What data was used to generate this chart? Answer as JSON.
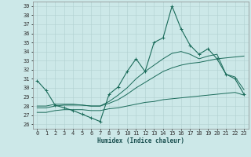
{
  "xlabel": "Humidex (Indice chaleur)",
  "bg_color": "#cce8e8",
  "grid_color": "#b0d0d0",
  "line_color": "#1a6b5a",
  "xlim": [
    -0.5,
    23.5
  ],
  "ylim": [
    25.5,
    39.5
  ],
  "yticks": [
    26,
    27,
    28,
    29,
    30,
    31,
    32,
    33,
    34,
    35,
    36,
    37,
    38,
    39
  ],
  "xticks": [
    0,
    1,
    2,
    3,
    4,
    5,
    6,
    7,
    8,
    9,
    10,
    11,
    12,
    13,
    14,
    15,
    16,
    17,
    18,
    19,
    20,
    21,
    22,
    23
  ],
  "series": [
    {
      "x": [
        0,
        1,
        2,
        3,
        4,
        5,
        6,
        7,
        8,
        9,
        10,
        11,
        12,
        13,
        14,
        15,
        16,
        17,
        18,
        19,
        20,
        21,
        22,
        23
      ],
      "y": [
        30.8,
        29.7,
        28.1,
        27.8,
        27.5,
        27.1,
        26.7,
        26.3,
        29.3,
        30.1,
        31.8,
        33.2,
        31.8,
        35.0,
        35.5,
        39.0,
        36.5,
        34.7,
        33.7,
        34.3,
        33.2,
        31.5,
        31.0,
        29.3
      ],
      "marker": true
    },
    {
      "x": [
        0,
        1,
        2,
        3,
        4,
        5,
        6,
        7,
        8,
        9,
        10,
        11,
        12,
        13,
        14,
        15,
        16,
        17,
        18,
        19,
        20,
        21,
        22,
        23
      ],
      "y": [
        27.3,
        27.3,
        27.5,
        27.6,
        27.6,
        27.6,
        27.5,
        27.5,
        27.7,
        27.8,
        28.0,
        28.2,
        28.4,
        28.5,
        28.7,
        28.8,
        28.9,
        29.0,
        29.1,
        29.2,
        29.3,
        29.4,
        29.5,
        29.2
      ],
      "marker": false
    },
    {
      "x": [
        0,
        1,
        2,
        3,
        4,
        5,
        6,
        7,
        8,
        9,
        10,
        11,
        12,
        13,
        14,
        15,
        16,
        17,
        18,
        19,
        20,
        21,
        22,
        23
      ],
      "y": [
        27.8,
        27.8,
        28.0,
        28.1,
        28.1,
        28.1,
        28.0,
        28.0,
        28.3,
        28.7,
        29.3,
        30.0,
        30.6,
        31.2,
        31.8,
        32.2,
        32.5,
        32.7,
        32.8,
        33.0,
        33.2,
        33.3,
        33.4,
        33.5
      ],
      "marker": false
    },
    {
      "x": [
        0,
        1,
        2,
        3,
        4,
        5,
        6,
        7,
        8,
        9,
        10,
        11,
        12,
        13,
        14,
        15,
        16,
        17,
        18,
        19,
        20,
        21,
        22,
        23
      ],
      "y": [
        28.0,
        28.0,
        28.2,
        28.2,
        28.2,
        28.1,
        28.0,
        28.0,
        28.5,
        29.2,
        30.0,
        31.0,
        31.8,
        32.5,
        33.2,
        33.8,
        34.0,
        33.7,
        33.2,
        33.5,
        33.7,
        31.5,
        31.2,
        29.8
      ],
      "marker": false
    }
  ]
}
